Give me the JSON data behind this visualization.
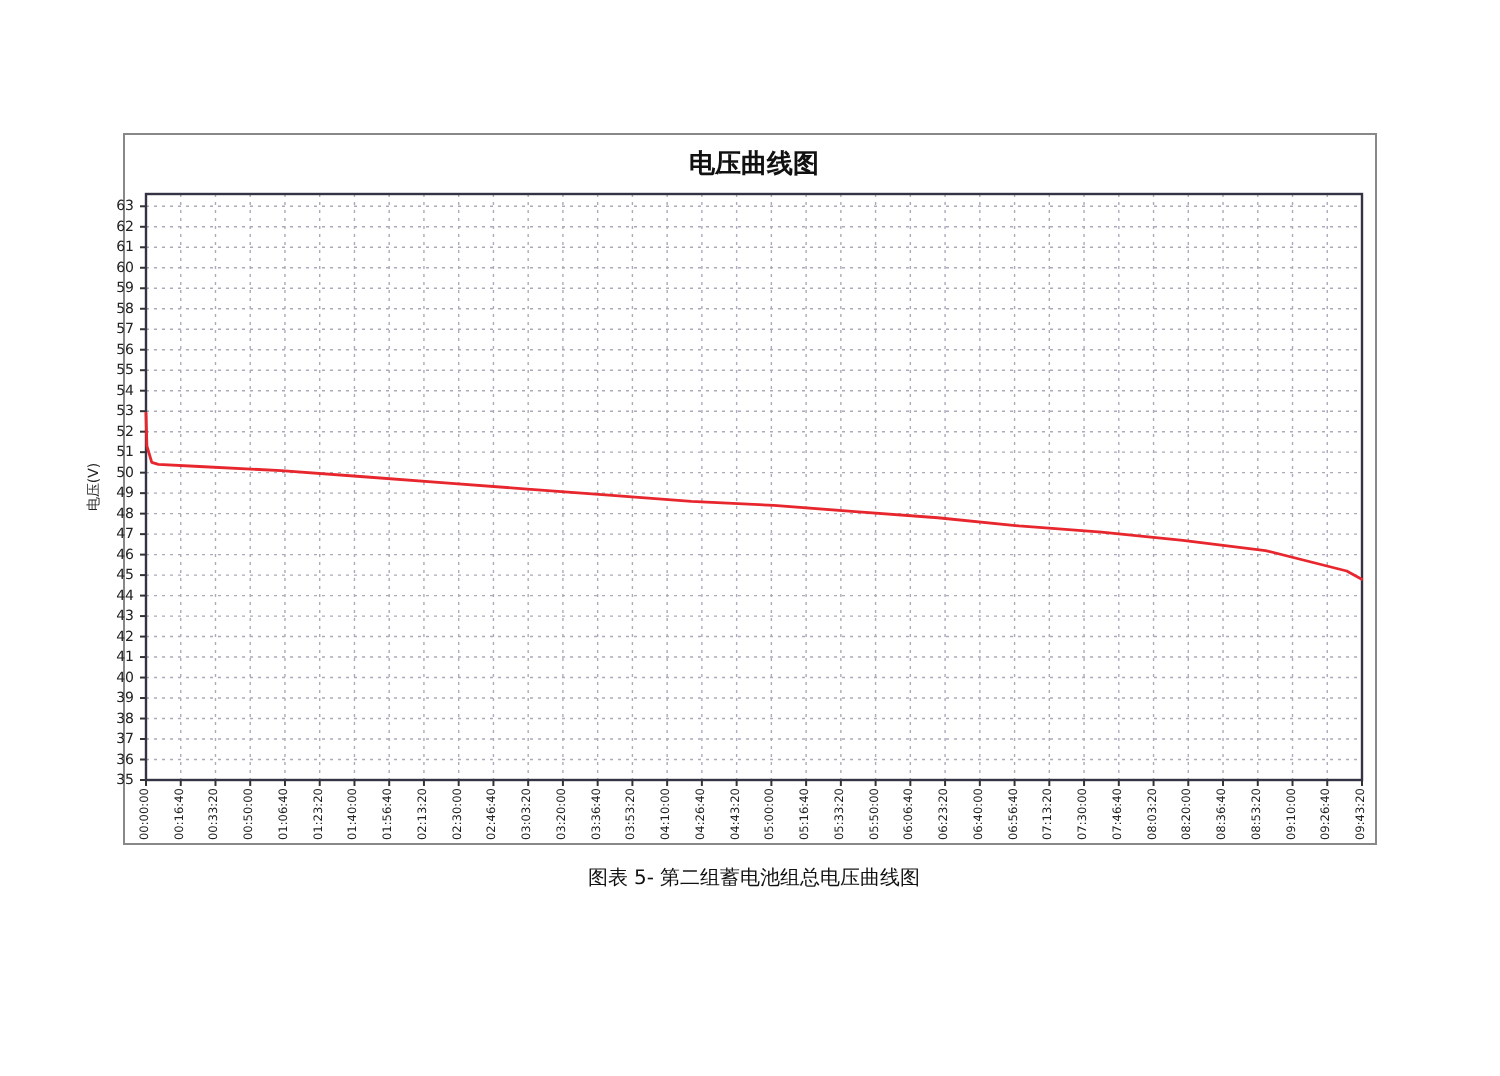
{
  "chart_data": {
    "type": "line",
    "title": "电压曲线图",
    "ylabel": "电压(V)",
    "annotations": [
      "图表 5- 第二组蓄电池组总电压曲线图"
    ],
    "x": [
      0,
      0.007,
      0.046,
      0.098,
      0.426,
      1.08,
      1.74,
      2.39,
      3.05,
      3.7,
      4.36,
      5.02,
      5.67,
      6.33,
      6.98,
      7.64,
      8.29,
      8.95,
      9.6,
      9.72
    ],
    "series": [
      {
        "color": "#e8262d",
        "values": [
          52.9,
          51.3,
          50.5,
          50.4,
          50.3,
          50.1,
          49.8,
          49.5,
          49.2,
          48.9,
          48.6,
          48.4,
          48.1,
          47.8,
          47.4,
          47.1,
          46.7,
          46.2,
          45.2,
          44.8
        ]
      }
    ],
    "xlim": [
      0,
      9.7222
    ],
    "xticks": [
      {
        "value": 0,
        "label": "00:00:00"
      },
      {
        "value": 0.2778,
        "label": "00:16:40"
      },
      {
        "value": 0.5556,
        "label": "00:33:20"
      },
      {
        "value": 0.8333,
        "label": "00:50:00"
      },
      {
        "value": 1.1111,
        "label": "01:06:40"
      },
      {
        "value": 1.3889,
        "label": "01:23:20"
      },
      {
        "value": 1.6667,
        "label": "01:40:00"
      },
      {
        "value": 1.9444,
        "label": "01:56:40"
      },
      {
        "value": 2.2222,
        "label": "02:13:20"
      },
      {
        "value": 2.5,
        "label": "02:30:00"
      },
      {
        "value": 2.7778,
        "label": "02:46:40"
      },
      {
        "value": 3.0556,
        "label": "03:03:20"
      },
      {
        "value": 3.3333,
        "label": "03:20:00"
      },
      {
        "value": 3.6111,
        "label": "03:36:40"
      },
      {
        "value": 3.8889,
        "label": "03:53:20"
      },
      {
        "value": 4.1667,
        "label": "04:10:00"
      },
      {
        "value": 4.4444,
        "label": "04:26:40"
      },
      {
        "value": 4.7222,
        "label": "04:43:20"
      },
      {
        "value": 5,
        "label": "05:00:00"
      },
      {
        "value": 5.2778,
        "label": "05:16:40"
      },
      {
        "value": 5.5556,
        "label": "05:33:20"
      },
      {
        "value": 5.8333,
        "label": "05:50:00"
      },
      {
        "value": 6.1111,
        "label": "06:06:40"
      },
      {
        "value": 6.3889,
        "label": "06:23:20"
      },
      {
        "value": 6.6667,
        "label": "06:40:00"
      },
      {
        "value": 6.9444,
        "label": "06:56:40"
      },
      {
        "value": 7.2222,
        "label": "07:13:20"
      },
      {
        "value": 7.5,
        "label": "07:30:00"
      },
      {
        "value": 7.7778,
        "label": "07:46:40"
      },
      {
        "value": 8.0556,
        "label": "08:03:20"
      },
      {
        "value": 8.3333,
        "label": "08:20:00"
      },
      {
        "value": 8.6111,
        "label": "08:36:40"
      },
      {
        "value": 8.8889,
        "label": "08:53:20"
      },
      {
        "value": 9.1667,
        "label": "09:10:00"
      },
      {
        "value": 9.4444,
        "label": "09:26:40"
      },
      {
        "value": 9.7222,
        "label": "09:43:20"
      }
    ],
    "ylim": [
      35,
      63.6
    ],
    "yticks": [
      35,
      36,
      37,
      38,
      39,
      40,
      41,
      42,
      43,
      44,
      45,
      46,
      47,
      48,
      49,
      50,
      51,
      52,
      53,
      54,
      55,
      56,
      57,
      58,
      59,
      60,
      61,
      62,
      63
    ],
    "grid": true,
    "line_style": "solid",
    "marker": "none"
  }
}
